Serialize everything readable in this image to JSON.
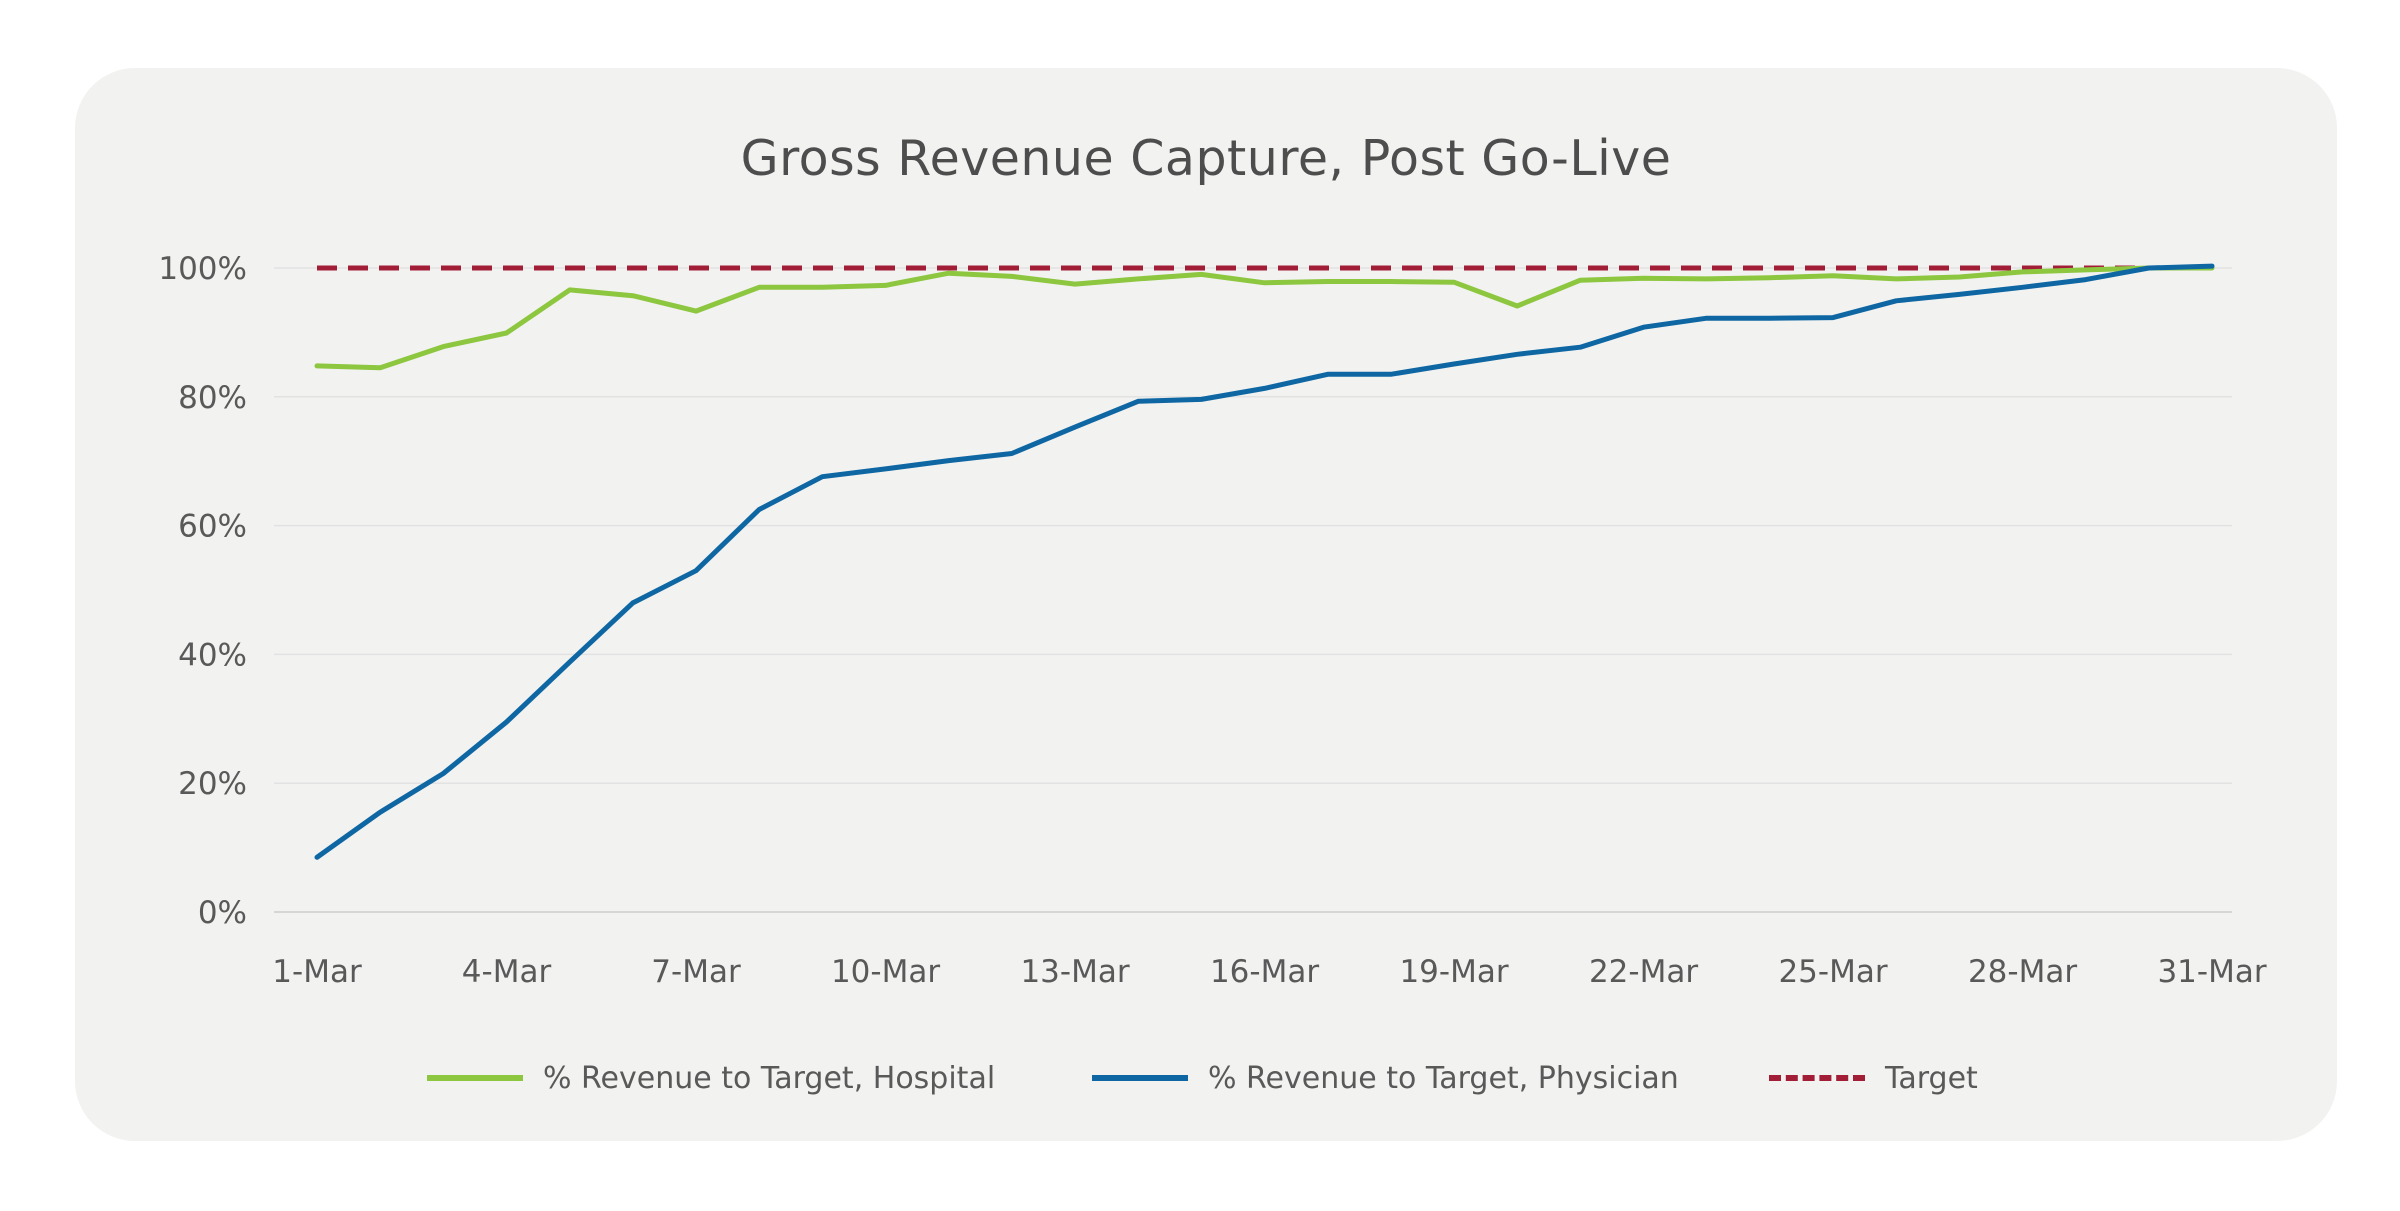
{
  "chart_data": {
    "type": "line",
    "title": "Gross Revenue Capture, Post Go-Live",
    "xlabel": "",
    "ylabel": "",
    "ylim": [
      0,
      1
    ],
    "y_ticks": [
      "0%",
      "20%",
      "40%",
      "60%",
      "80%",
      "100%"
    ],
    "x": [
      "1-Mar",
      "2-Mar",
      "3-Mar",
      "4-Mar",
      "5-Mar",
      "6-Mar",
      "7-Mar",
      "8-Mar",
      "9-Mar",
      "10-Mar",
      "11-Mar",
      "12-Mar",
      "13-Mar",
      "14-Mar",
      "15-Mar",
      "16-Mar",
      "17-Mar",
      "18-Mar",
      "19-Mar",
      "20-Mar",
      "21-Mar",
      "22-Mar",
      "23-Mar",
      "24-Mar",
      "25-Mar",
      "26-Mar",
      "27-Mar",
      "28-Mar",
      "29-Mar",
      "30-Mar",
      "31-Mar"
    ],
    "x_tick_labels": [
      "1-Mar",
      "4-Mar",
      "7-Mar",
      "10-Mar",
      "13-Mar",
      "16-Mar",
      "19-Mar",
      "22-Mar",
      "25-Mar",
      "28-Mar",
      "31-Mar"
    ],
    "grid": "horizontal",
    "legend_position": "bottom",
    "series": [
      {
        "name": "% Revenue to Target, Hospital",
        "color": "#8dc63f",
        "style": "solid",
        "values": [
          0.848,
          0.845,
          0.878,
          0.899,
          0.966,
          0.957,
          0.933,
          0.97,
          0.97,
          0.973,
          0.992,
          0.987,
          0.975,
          0.983,
          0.99,
          0.977,
          0.979,
          0.979,
          0.978,
          0.941,
          0.981,
          0.984,
          0.983,
          0.985,
          0.988,
          0.983,
          0.986,
          0.994,
          0.997,
          1.0,
          1.0
        ]
      },
      {
        "name": "% Revenue to Target, Physician",
        "color": "#0e67a3",
        "style": "solid",
        "values": [
          0.085,
          0.155,
          0.215,
          0.295,
          0.388,
          0.48,
          0.53,
          0.625,
          0.676,
          0.688,
          0.701,
          0.712,
          0.753,
          0.793,
          0.796,
          0.813,
          0.835,
          0.835,
          0.851,
          0.866,
          0.877,
          0.908,
          0.922,
          0.922,
          0.923,
          0.949,
          0.959,
          0.97,
          0.982,
          1.0,
          1.003
        ]
      },
      {
        "name": "Target",
        "color": "#a21d36",
        "style": "dashed",
        "values": [
          1,
          1,
          1,
          1,
          1,
          1,
          1,
          1,
          1,
          1,
          1,
          1,
          1,
          1,
          1,
          1,
          1,
          1,
          1,
          1,
          1,
          1,
          1,
          1,
          1,
          1,
          1,
          1,
          1,
          1,
          1
        ]
      }
    ]
  }
}
